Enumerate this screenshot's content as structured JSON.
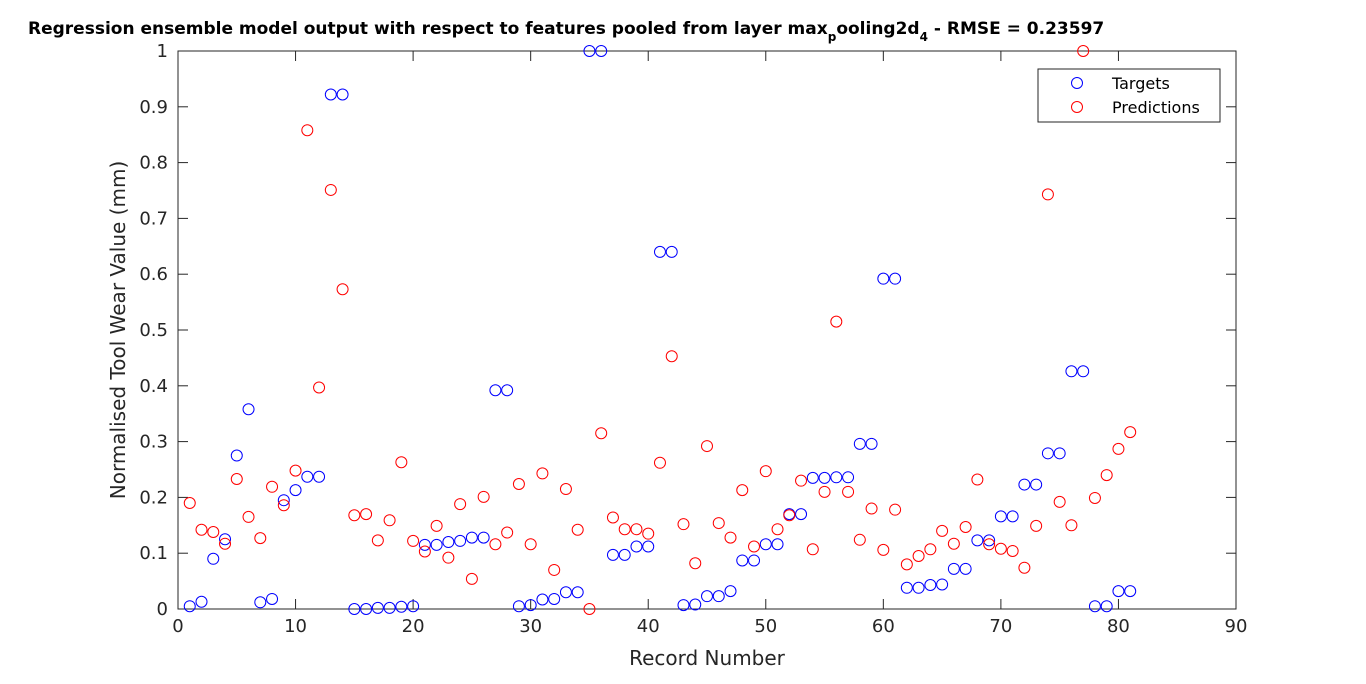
{
  "chart_data": {
    "type": "scatter",
    "title": {
      "main": "Regression ensemble model output with respect to features pooled from layer max",
      "sub_p": "p",
      "mid": "ooling2d",
      "sub_4": "4",
      "tail": " - RMSE = 0.23597"
    },
    "xlabel": "Record Number",
    "ylabel": "Normalised Tool Wear Value (mm)",
    "xlim": [
      0,
      90
    ],
    "ylim": [
      0,
      1
    ],
    "xticks": [
      0,
      10,
      20,
      30,
      40,
      50,
      60,
      70,
      80,
      90
    ],
    "yticks": [
      0,
      0.1,
      0.2,
      0.3,
      0.4,
      0.5,
      0.6,
      0.7,
      0.8,
      0.9,
      1
    ],
    "ytick_labels": [
      "0",
      "0.1",
      "0.2",
      "0.3",
      "0.4",
      "0.5",
      "0.6",
      "0.7",
      "0.8",
      "0.9",
      "1"
    ],
    "legend_position": "top-right",
    "grid": false,
    "series": [
      {
        "name": "Targets",
        "color": "#0000ff",
        "marker": "circle-open",
        "points": [
          [
            1,
            0.005
          ],
          [
            2,
            0.013
          ],
          [
            3,
            0.09
          ],
          [
            4,
            0.125
          ],
          [
            5,
            0.275
          ],
          [
            6,
            0.358
          ],
          [
            7,
            0.012
          ],
          [
            8,
            0.018
          ],
          [
            9,
            0.195
          ],
          [
            10,
            0.213
          ],
          [
            11,
            0.237
          ],
          [
            12,
            0.237
          ],
          [
            13,
            0.922
          ],
          [
            14,
            0.922
          ],
          [
            15,
            0.0
          ],
          [
            16,
            0.0
          ],
          [
            17,
            0.002
          ],
          [
            18,
            0.002
          ],
          [
            19,
            0.004
          ],
          [
            20,
            0.005
          ],
          [
            21,
            0.115
          ],
          [
            22,
            0.115
          ],
          [
            23,
            0.12
          ],
          [
            24,
            0.122
          ],
          [
            25,
            0.128
          ],
          [
            26,
            0.128
          ],
          [
            27,
            0.392
          ],
          [
            28,
            0.392
          ],
          [
            29,
            0.005
          ],
          [
            30,
            0.007
          ],
          [
            31,
            0.017
          ],
          [
            32,
            0.018
          ],
          [
            33,
            0.03
          ],
          [
            34,
            0.03
          ],
          [
            35,
            1.0
          ],
          [
            36,
            1.0
          ],
          [
            37,
            0.097
          ],
          [
            38,
            0.097
          ],
          [
            39,
            0.112
          ],
          [
            40,
            0.112
          ],
          [
            41,
            0.64
          ],
          [
            42,
            0.64
          ],
          [
            43,
            0.007
          ],
          [
            44,
            0.008
          ],
          [
            45,
            0.023
          ],
          [
            46,
            0.023
          ],
          [
            47,
            0.032
          ],
          [
            48,
            0.087
          ],
          [
            49,
            0.087
          ],
          [
            50,
            0.116
          ],
          [
            51,
            0.116
          ],
          [
            52,
            0.17
          ],
          [
            53,
            0.17
          ],
          [
            54,
            0.235
          ],
          [
            55,
            0.235
          ],
          [
            56,
            0.236
          ],
          [
            57,
            0.236
          ],
          [
            58,
            0.296
          ],
          [
            59,
            0.296
          ],
          [
            60,
            0.592
          ],
          [
            61,
            0.592
          ],
          [
            62,
            0.038
          ],
          [
            63,
            0.038
          ],
          [
            64,
            0.043
          ],
          [
            65,
            0.044
          ],
          [
            66,
            0.072
          ],
          [
            67,
            0.072
          ],
          [
            68,
            0.123
          ],
          [
            69,
            0.123
          ],
          [
            70,
            0.166
          ],
          [
            71,
            0.166
          ],
          [
            72,
            0.223
          ],
          [
            73,
            0.223
          ],
          [
            74,
            0.279
          ],
          [
            75,
            0.279
          ],
          [
            76,
            0.426
          ],
          [
            77,
            0.426
          ],
          [
            78,
            0.005
          ],
          [
            79,
            0.005
          ],
          [
            80,
            0.032
          ],
          [
            81,
            0.032
          ]
        ]
      },
      {
        "name": "Predictions",
        "color": "#ff0000",
        "marker": "circle-open",
        "points": [
          [
            1,
            0.19
          ],
          [
            2,
            0.142
          ],
          [
            3,
            0.138
          ],
          [
            4,
            0.117
          ],
          [
            5,
            0.233
          ],
          [
            6,
            0.165
          ],
          [
            7,
            0.127
          ],
          [
            8,
            0.219
          ],
          [
            9,
            0.186
          ],
          [
            10,
            0.248
          ],
          [
            11,
            0.858
          ],
          [
            12,
            0.397
          ],
          [
            13,
            0.751
          ],
          [
            14,
            0.573
          ],
          [
            15,
            0.168
          ],
          [
            16,
            0.17
          ],
          [
            17,
            0.123
          ],
          [
            18,
            0.159
          ],
          [
            19,
            0.263
          ],
          [
            20,
            0.122
          ],
          [
            21,
            0.103
          ],
          [
            22,
            0.149
          ],
          [
            23,
            0.092
          ],
          [
            24,
            0.188
          ],
          [
            25,
            0.054
          ],
          [
            26,
            0.201
          ],
          [
            27,
            0.116
          ],
          [
            28,
            0.137
          ],
          [
            29,
            0.224
          ],
          [
            30,
            0.116
          ],
          [
            31,
            0.243
          ],
          [
            32,
            0.07
          ],
          [
            33,
            0.215
          ],
          [
            34,
            0.142
          ],
          [
            35,
            0.0
          ],
          [
            36,
            0.315
          ],
          [
            37,
            0.164
          ],
          [
            38,
            0.143
          ],
          [
            39,
            0.143
          ],
          [
            40,
            0.135
          ],
          [
            41,
            0.262
          ],
          [
            42,
            0.453
          ],
          [
            43,
            0.152
          ],
          [
            44,
            0.082
          ],
          [
            45,
            0.292
          ],
          [
            46,
            0.154
          ],
          [
            47,
            0.128
          ],
          [
            48,
            0.213
          ],
          [
            49,
            0.112
          ],
          [
            50,
            0.247
          ],
          [
            51,
            0.143
          ],
          [
            52,
            0.168
          ],
          [
            53,
            0.23
          ],
          [
            54,
            0.107
          ],
          [
            55,
            0.21
          ],
          [
            56,
            0.515
          ],
          [
            57,
            0.21
          ],
          [
            58,
            0.124
          ],
          [
            59,
            0.18
          ],
          [
            60,
            0.106
          ],
          [
            61,
            0.178
          ],
          [
            62,
            0.08
          ],
          [
            63,
            0.095
          ],
          [
            64,
            0.107
          ],
          [
            65,
            0.14
          ],
          [
            66,
            0.117
          ],
          [
            67,
            0.147
          ],
          [
            68,
            0.232
          ],
          [
            69,
            0.116
          ],
          [
            70,
            0.108
          ],
          [
            71,
            0.104
          ],
          [
            72,
            0.074
          ],
          [
            73,
            0.149
          ],
          [
            74,
            0.743
          ],
          [
            75,
            0.192
          ],
          [
            76,
            0.15
          ],
          [
            77,
            1.0
          ],
          [
            78,
            0.199
          ],
          [
            79,
            0.24
          ],
          [
            80,
            0.287
          ],
          [
            81,
            0.317
          ]
        ]
      }
    ]
  }
}
